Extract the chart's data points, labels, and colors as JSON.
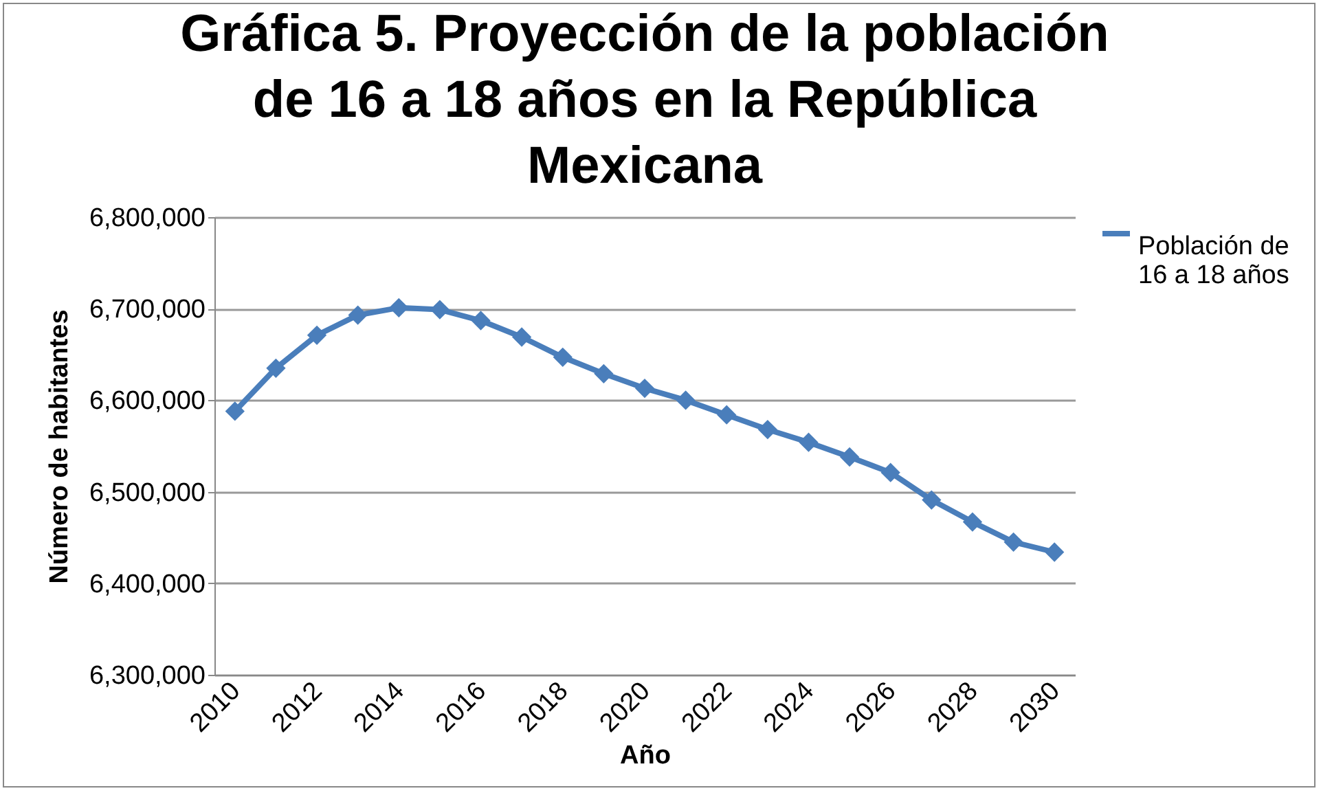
{
  "chart_data": {
    "type": "line",
    "title": "Gráfica 5. Proyección de la población de 16 a 18 años en la República Mexicana",
    "xlabel": "Año",
    "ylabel": "Número de habitantes",
    "categories": [
      "2010",
      null,
      "2012",
      null,
      "2014",
      null,
      "2016",
      null,
      "2018",
      null,
      "2020",
      null,
      "2022",
      null,
      "2024",
      null,
      "2026",
      null,
      "2028",
      null,
      "2030"
    ],
    "series": [
      {
        "name": "Población de 16 a 18 años",
        "color": "#4a7ebb",
        "values": [
          6588000,
          6635000,
          6671000,
          6693000,
          6701000,
          6699000,
          6687000,
          6669000,
          6647000,
          6629000,
          6613000,
          6600000,
          6584000,
          6568000,
          6554000,
          6538000,
          6521000,
          6491000,
          6467000,
          6445000,
          6434000
        ]
      }
    ],
    "ylim": [
      6300000,
      6800000
    ],
    "yticks": [
      {
        "value": 6300000,
        "label": "6,300,000"
      },
      {
        "value": 6400000,
        "label": "6,400,000"
      },
      {
        "value": 6500000,
        "label": "6,500,000"
      },
      {
        "value": 6600000,
        "label": "6,600,000"
      },
      {
        "value": 6700000,
        "label": "6,700,000"
      },
      {
        "value": 6800000,
        "label": "6,800,000"
      }
    ],
    "grid": "y",
    "legend": "right",
    "marker": "diamond",
    "line_style": "solid"
  }
}
